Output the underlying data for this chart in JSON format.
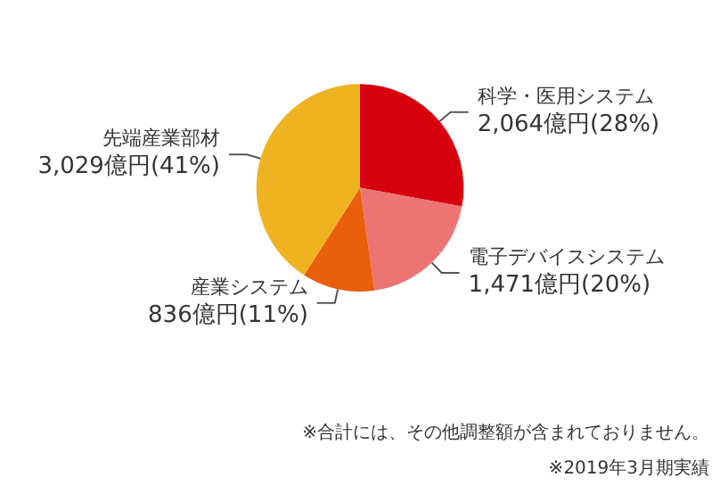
{
  "chart_data": {
    "type": "pie",
    "categories": [
      "科学・医用システム",
      "電子デバイスシステム",
      "産業システム",
      "先端産業部材"
    ],
    "values": [
      2064,
      1471,
      836,
      3029
    ],
    "value_labels": [
      "2,064億円(28%)",
      "1,471億円(20%)",
      "836億円(11%)",
      "3,029億円(41%)"
    ],
    "colors": [
      "#d7000f",
      "#ec7473",
      "#ea5f0c",
      "#efb321"
    ],
    "legend": false,
    "annotations": [
      "※合計には、その他調整額が含まれておりません。",
      "※2019年3月期実績"
    ]
  }
}
